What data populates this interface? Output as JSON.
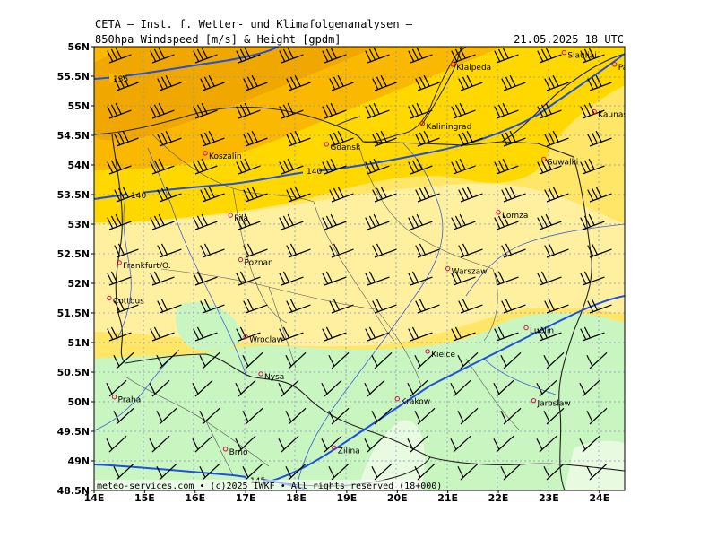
{
  "header": {
    "title": "CETA – Inst. f. Wetter- und Klimafolgenanalysen –",
    "subtitle": "850hpa Windspeed [m/s] & Height [gpdm]",
    "datetime": "21.05.2025 18 UTC"
  },
  "footer": {
    "credit": "meteo-services.com • (c)2025 IWKF • All rights reserved (18+000)"
  },
  "axes": {
    "lon_labels": [
      "14E",
      "15E",
      "16E",
      "17E",
      "18E",
      "19E",
      "20E",
      "21E",
      "22E",
      "23E",
      "24E"
    ],
    "lat_labels": [
      "56N",
      "55.5N",
      "55N",
      "54.5N",
      "54N",
      "53.5N",
      "53N",
      "52.5N",
      "52N",
      "51.5N",
      "51N",
      "50.5N",
      "50N",
      "49.5N",
      "49N",
      "48.5N"
    ],
    "lon_range": [
      14,
      24.5
    ],
    "lat_range": [
      48.5,
      56
    ]
  },
  "contours": [
    {
      "label": "135",
      "color": "#2050e0"
    },
    {
      "label": "140",
      "color": "#2050e0"
    },
    {
      "label": "145",
      "color": "#2050e0"
    }
  ],
  "cities": [
    {
      "name": "Klaipeda",
      "lon": 21.1,
      "lat": 55.7
    },
    {
      "name": "Siauliai",
      "lon": 23.3,
      "lat": 55.9
    },
    {
      "name": "Panevezys",
      "lon": 24.3,
      "lat": 55.7
    },
    {
      "name": "Kaunas",
      "lon": 23.9,
      "lat": 54.9
    },
    {
      "name": "Kaliningrad",
      "lon": 20.5,
      "lat": 54.7
    },
    {
      "name": "Gdansk",
      "lon": 18.6,
      "lat": 54.35
    },
    {
      "name": "Koszalin",
      "lon": 16.2,
      "lat": 54.2
    },
    {
      "name": "Suwalki",
      "lon": 22.9,
      "lat": 54.1
    },
    {
      "name": "Pila",
      "lon": 16.7,
      "lat": 53.15
    },
    {
      "name": "Lomza",
      "lon": 22.0,
      "lat": 53.2
    },
    {
      "name": "Poznan",
      "lon": 16.9,
      "lat": 52.4
    },
    {
      "name": "Frankfurt/O.",
      "lon": 14.5,
      "lat": 52.35
    },
    {
      "name": "Warszaw",
      "lon": 21.0,
      "lat": 52.25
    },
    {
      "name": "Cottbus",
      "lon": 14.3,
      "lat": 51.75
    },
    {
      "name": "Lublin",
      "lon": 22.55,
      "lat": 51.25
    },
    {
      "name": "Wroclaw",
      "lon": 17.0,
      "lat": 51.1
    },
    {
      "name": "Kielce",
      "lon": 20.6,
      "lat": 50.85
    },
    {
      "name": "Nysa",
      "lon": 17.3,
      "lat": 50.47
    },
    {
      "name": "Praha",
      "lon": 14.4,
      "lat": 50.08
    },
    {
      "name": "Krakow",
      "lon": 20.0,
      "lat": 50.05
    },
    {
      "name": "Jaroslaw",
      "lon": 22.7,
      "lat": 50.02
    },
    {
      "name": "Brno",
      "lon": 16.6,
      "lat": 49.2
    },
    {
      "name": "Zilina",
      "lon": 18.75,
      "lat": 49.22
    }
  ],
  "colors": {
    "band_very_high": "#fbb800",
    "band_high": "#ffd800",
    "band_mid": "#ffe666",
    "band_low": "#fff0a0",
    "band_calm": "#c8f5c0",
    "band_calmest": "#e8fae0",
    "contour": "#2050e0",
    "city": "#d01050"
  }
}
